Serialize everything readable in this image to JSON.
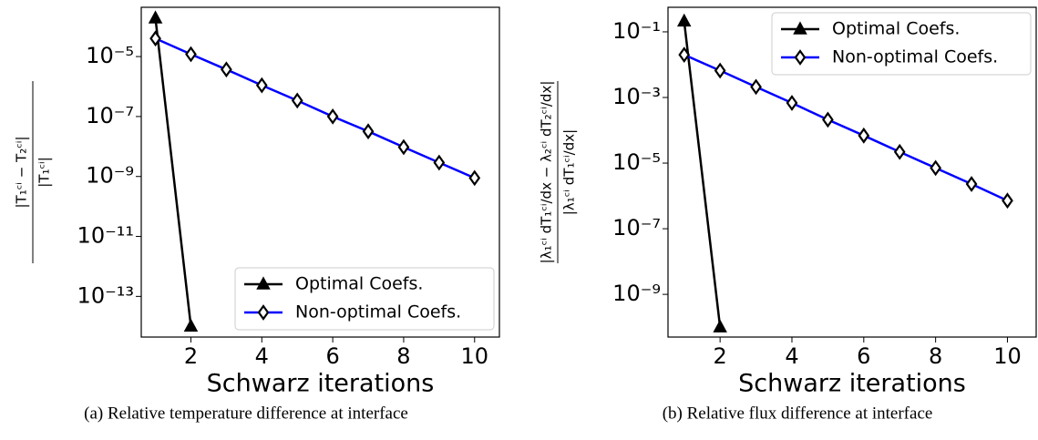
{
  "chart_data": [
    {
      "type": "line",
      "caption": "(a) Relative temperature difference at interface",
      "xlabel": "Schwarz iterations",
      "ylabel": {
        "numerator": "|T₁ᶜⁱ − T₂ᶜⁱ|",
        "denominator": "|T₁ᶜⁱ|"
      },
      "log_y": true,
      "legend": "lower right",
      "x": [
        1,
        2,
        3,
        4,
        5,
        6,
        7,
        8,
        9,
        10
      ],
      "xlim": [
        0.6,
        10.7
      ],
      "xticks": [
        2,
        4,
        6,
        8,
        10
      ],
      "ylim": [
        4.4e-15,
        0.00044
      ],
      "yticks": [
        {
          "value": 1e-13,
          "label": "10⁻¹³"
        },
        {
          "value": 1e-11,
          "label": "10⁻¹¹"
        },
        {
          "value": 1e-09,
          "label": "10⁻⁹"
        },
        {
          "value": 1e-07,
          "label": "10⁻⁷"
        },
        {
          "value": 1e-05,
          "label": "10⁻⁵"
        }
      ],
      "series": [
        {
          "name": "Optimal Coefs.",
          "color": "#000000",
          "marker": "triangle",
          "values": [
            0.00019,
            1e-14,
            null,
            null,
            null,
            null,
            null,
            null,
            null,
            null
          ]
        },
        {
          "name": "Non-optimal Coefs.",
          "color": "#0000ff",
          "marker": "diamond",
          "values": [
            4e-05,
            1.2e-05,
            3.7e-06,
            1.1e-06,
            3.4e-07,
            1e-07,
            3.2e-08,
            9.5e-09,
            2.9e-09,
            8.9e-10
          ]
        }
      ]
    },
    {
      "type": "line",
      "caption": "(b) Relative flux difference at interface",
      "xlabel": "Schwarz iterations",
      "ylabel": {
        "numerator": "|λ₁ᶜⁱ dT₁ᶜⁱ/dx − λ₂ᶜⁱ dT₂ᶜⁱ/dx|",
        "denominator": "|λ₁ᶜⁱ dT₁ᶜⁱ/dx|"
      },
      "log_y": true,
      "legend": "upper right",
      "x": [
        1,
        2,
        3,
        4,
        5,
        6,
        7,
        8,
        9,
        10
      ],
      "xlim": [
        0.55,
        10.8
      ],
      "xticks": [
        2,
        4,
        6,
        8,
        10
      ],
      "ylim": [
        5e-11,
        0.56
      ],
      "yticks": [
        {
          "value": 1e-09,
          "label": "10⁻⁹"
        },
        {
          "value": 1e-07,
          "label": "10⁻⁷"
        },
        {
          "value": 1e-05,
          "label": "10⁻⁵"
        },
        {
          "value": 0.001,
          "label": "10⁻³"
        },
        {
          "value": 0.1,
          "label": "10⁻¹"
        }
      ],
      "series": [
        {
          "name": "Optimal Coefs.",
          "color": "#000000",
          "marker": "triangle",
          "values": [
            0.21,
            1e-10,
            null,
            null,
            null,
            null,
            null,
            null,
            null,
            null
          ]
        },
        {
          "name": "Non-optimal Coefs.",
          "color": "#0000ff",
          "marker": "diamond",
          "values": [
            0.02,
            0.0066,
            0.0021,
            0.00068,
            0.00021,
            6.9e-05,
            2.2e-05,
            7.1e-06,
            2.3e-06,
            7.2e-07
          ]
        }
      ]
    }
  ]
}
